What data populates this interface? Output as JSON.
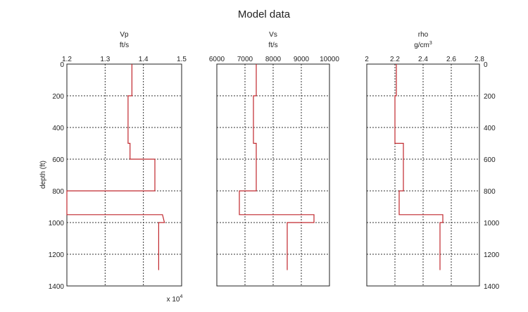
{
  "chart_data": {
    "type": "line",
    "title": "Model data",
    "shared_ylabel": "depth (ft)",
    "ylim": [
      0,
      1400
    ],
    "yticks": [
      0,
      200,
      400,
      600,
      800,
      1000,
      1200,
      1400
    ],
    "ytick_labels": [
      "0",
      "200",
      "400",
      "600",
      "800",
      "1000",
      "1200",
      "1400"
    ],
    "grid": true,
    "line_color": "#c0272d",
    "panels": [
      {
        "title": "Vp",
        "unit": "ft/s",
        "xlim": [
          1.2,
          1.5
        ],
        "xticks": [
          1.2,
          1.3,
          1.4,
          1.5
        ],
        "xtick_labels": [
          "1.2",
          "1.3",
          "1.4",
          "1.5"
        ],
        "multiplier_base": "x 10",
        "multiplier_exp": "4",
        "series": [
          {
            "x": [
              1.37,
              1.37,
              1.36,
              1.36,
              1.365,
              1.365,
              1.43,
              1.43,
              1.2,
              1.2,
              1.45,
              1.455,
              1.44,
              1.44
            ],
            "y": [
              0,
              200,
              200,
              500,
              500,
              600,
              600,
              800,
              800,
              950,
              950,
              1000,
              1000,
              1300
            ]
          }
        ]
      },
      {
        "title": "Vs",
        "unit": "ft/s",
        "xlim": [
          6000,
          10000
        ],
        "xticks": [
          6000,
          7000,
          8000,
          9000,
          10000
        ],
        "xtick_labels": [
          "6000",
          "7000",
          "8000",
          "9000",
          "10000"
        ],
        "series": [
          {
            "x": [
              7400,
              7400,
              7300,
              7300,
              7400,
              7400,
              7400,
              7400,
              6800,
              6800,
              9450,
              9450,
              8500,
              8500
            ],
            "y": [
              0,
              200,
              200,
              500,
              500,
              600,
              600,
              800,
              800,
              950,
              950,
              1000,
              1000,
              1300
            ]
          }
        ]
      },
      {
        "title": "rho",
        "unit": "g/cm",
        "unit_sup": "3",
        "xlim": [
          2.0,
          2.8
        ],
        "xticks": [
          2.0,
          2.2,
          2.4,
          2.6,
          2.8
        ],
        "xtick_labels": [
          "2",
          "2.2",
          "2.4",
          "2.6",
          "2.8"
        ],
        "series": [
          {
            "x": [
              2.21,
              2.21,
              2.2,
              2.2,
              2.26,
              2.26,
              2.26,
              2.26,
              2.23,
              2.23,
              2.54,
              2.54,
              2.52,
              2.52
            ],
            "y": [
              0,
              200,
              200,
              500,
              500,
              600,
              600,
              800,
              800,
              950,
              950,
              1000,
              1000,
              1300
            ]
          }
        ]
      }
    ]
  }
}
